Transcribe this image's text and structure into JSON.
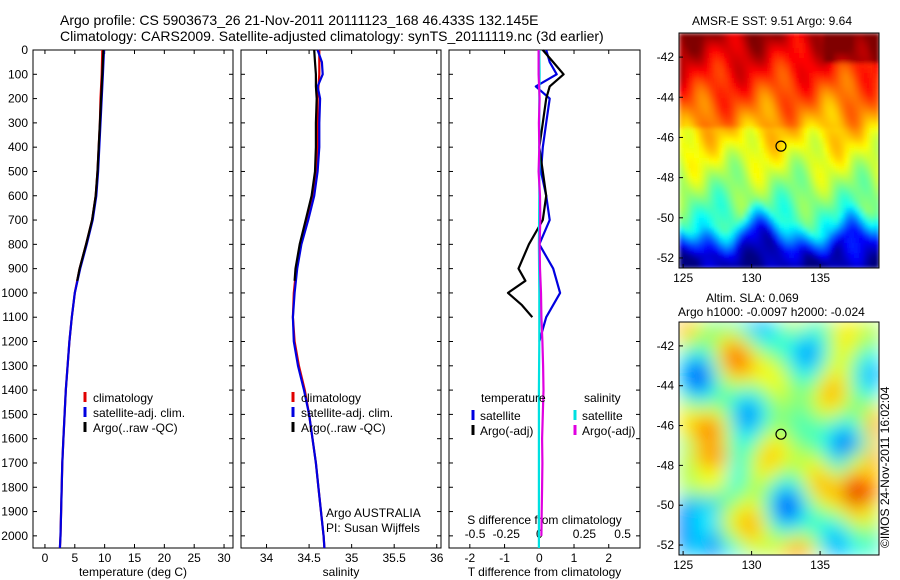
{
  "header": {
    "line1": "Argo profile: CS 5903673_26 21-Nov-2011 20111123_168 46.433S 132.145E",
    "line2": "Climatology: CARS2009. Satellite-adjusted climatology: synTS_20111119.nc (3d earlier)"
  },
  "credits": {
    "line1": "Argo AUSTRALIA",
    "line2": "PI: Susan Wijffels"
  },
  "timestamp": "©IMOS 24-Nov-2011 16:02:04",
  "chart_data": [
    {
      "type": "line",
      "xlabel": "temperature (deg C)",
      "xticks": [
        0,
        5,
        10,
        15,
        20,
        25,
        30
      ],
      "xlim": [
        -2,
        31.5
      ],
      "yticks": [
        0,
        100,
        200,
        300,
        400,
        500,
        600,
        700,
        800,
        900,
        1000,
        1100,
        1200,
        1300,
        1400,
        1500,
        1600,
        1700,
        1800,
        1900,
        2000
      ],
      "ylim": [
        0,
        2050
      ],
      "y_reversed": true,
      "legend": [
        "climatology",
        "satellite-adj. clim.",
        "Argo(..raw -QC)"
      ],
      "series": [
        {
          "name": "climatology",
          "color": "#e00000",
          "depth": [
            0,
            100,
            200,
            300,
            400,
            500,
            600,
            700,
            800,
            900,
            1000,
            1100,
            1200,
            1300,
            1400,
            1500,
            1600,
            1700,
            1800,
            1900,
            2000,
            2050
          ],
          "values": [
            9.6,
            9.5,
            9.3,
            9.2,
            9.0,
            8.8,
            8.5,
            7.9,
            6.9,
            5.8,
            5.0,
            4.5,
            4.1,
            3.8,
            3.5,
            3.3,
            3.1,
            2.9,
            2.8,
            2.7,
            2.6,
            2.5
          ]
        },
        {
          "name": "satellite-adj. clim.",
          "color": "#0000e0",
          "depth": [
            0,
            100,
            200,
            300,
            400,
            500,
            600,
            700,
            800,
            900,
            1000,
            1100,
            1200,
            1300,
            1400,
            1500,
            1600,
            1700,
            1800,
            1900,
            2000,
            2050
          ],
          "values": [
            9.9,
            9.7,
            9.5,
            9.3,
            9.1,
            8.9,
            8.6,
            8.0,
            7.0,
            5.9,
            5.0,
            4.5,
            4.1,
            3.8,
            3.5,
            3.3,
            3.1,
            2.9,
            2.8,
            2.7,
            2.6,
            2.5
          ]
        },
        {
          "name": "Argo(..raw -QC)",
          "color": "#000000",
          "depth": [
            0,
            100,
            200,
            300,
            400,
            500,
            600,
            700,
            800,
            900,
            950
          ],
          "values": [
            9.8,
            9.6,
            9.4,
            9.2,
            9.0,
            8.8,
            8.5,
            7.9,
            6.9,
            5.8,
            5.4
          ]
        }
      ]
    },
    {
      "type": "line",
      "xlabel": "salinity",
      "xticks": [
        34,
        34.5,
        35,
        35.5,
        36
      ],
      "xlim": [
        33.7,
        36.05
      ],
      "yticks": [
        0,
        100,
        200,
        300,
        400,
        500,
        600,
        700,
        800,
        900,
        1000,
        1100,
        1200,
        1300,
        1400,
        1500,
        1600,
        1700,
        1800,
        1900,
        2000
      ],
      "ylim": [
        0,
        2050
      ],
      "y_reversed": true,
      "legend": [
        "climatology",
        "satellite-adj. clim.",
        "Argo(..raw -QC)"
      ],
      "series": [
        {
          "name": "climatology",
          "color": "#e00000",
          "depth": [
            0,
            100,
            200,
            300,
            400,
            500,
            600,
            700,
            800,
            900,
            1000,
            1100,
            1200,
            1300,
            1400,
            1500,
            1600,
            1700,
            1800,
            1900,
            2000,
            2050
          ],
          "values": [
            34.62,
            34.62,
            34.6,
            34.6,
            34.6,
            34.58,
            34.54,
            34.47,
            34.4,
            34.35,
            34.32,
            34.31,
            34.33,
            34.38,
            34.45,
            34.5,
            34.54,
            34.58,
            34.61,
            34.64,
            34.67,
            34.68
          ]
        },
        {
          "name": "satellite-adj. clim.",
          "color": "#0000e0",
          "depth": [
            0,
            50,
            100,
            150,
            200,
            300,
            400,
            500,
            600,
            700,
            800,
            900,
            1000,
            1100,
            1200,
            1300,
            1400,
            1500,
            1600,
            1700,
            1800,
            1900,
            2000,
            2050
          ],
          "values": [
            34.6,
            34.65,
            34.66,
            34.6,
            34.63,
            34.62,
            34.62,
            34.6,
            34.56,
            34.49,
            34.41,
            34.36,
            34.33,
            34.31,
            34.32,
            34.37,
            34.44,
            34.5,
            34.54,
            34.58,
            34.61,
            34.64,
            34.67,
            34.68
          ]
        },
        {
          "name": "Argo(..raw -QC)",
          "color": "#000000",
          "depth": [
            0,
            50,
            100,
            150,
            200,
            300,
            400,
            500,
            600,
            700,
            800,
            900,
            950
          ],
          "values": [
            34.56,
            34.57,
            34.58,
            34.58,
            34.59,
            34.58,
            34.58,
            34.57,
            34.53,
            34.46,
            34.39,
            34.34,
            34.33
          ]
        }
      ]
    },
    {
      "type": "line",
      "xlabel": "T difference from climatology",
      "xticks": [
        -2,
        -1,
        0,
        1,
        2
      ],
      "xlim": [
        -2.6,
        2.9
      ],
      "second_axis_label": "S difference from climatology",
      "second_xticks": [
        "-0.5",
        "-0.25",
        "0",
        "0.25",
        "0.5"
      ],
      "yticks": [
        0,
        100,
        200,
        300,
        400,
        500,
        600,
        700,
        800,
        900,
        1000,
        1100,
        1200,
        1300,
        1400,
        1500,
        1600,
        1700,
        1800,
        1900,
        2000
      ],
      "ylim": [
        0,
        2050
      ],
      "y_reversed": true,
      "legend_temperature_title": "temperature",
      "legend_salinity_title": "salinity",
      "legend_temperature": [
        "satellite",
        "Argo(-adj)"
      ],
      "legend_salinity": [
        "satellite",
        "Argo(-adj)"
      ],
      "series": [
        {
          "name": "T satellite",
          "color": "#0000e0",
          "depth": [
            0,
            50,
            100,
            150,
            200,
            300,
            400,
            500,
            600,
            700,
            800,
            900,
            1000,
            1100,
            1200
          ],
          "values": [
            0.2,
            0.3,
            0.5,
            -0.1,
            0.3,
            0.2,
            0.1,
            0.05,
            0.2,
            0.3,
            0.0,
            0.4,
            0.6,
            0.2,
            0.0
          ]
        },
        {
          "name": "T Argo(-adj)",
          "color": "#000000",
          "depth": [
            0,
            50,
            100,
            150,
            200,
            300,
            400,
            500,
            600,
            700,
            800,
            900,
            950,
            1000,
            1050,
            1100
          ],
          "values": [
            0.1,
            0.4,
            0.7,
            0.3,
            0.2,
            0.1,
            0.0,
            0.1,
            0.2,
            0.1,
            -0.3,
            -0.6,
            -0.4,
            -0.9,
            -0.5,
            -0.2
          ]
        },
        {
          "name": "S satellite",
          "color": "#00e0e0",
          "depth": [
            0,
            100,
            200,
            400,
            600,
            800,
            1000,
            1200,
            1400,
            1600,
            1800,
            2000,
            2050
          ],
          "values": [
            0.0,
            0.01,
            0.0,
            0.0,
            0.0,
            -0.01,
            0.0,
            0.0,
            -0.01,
            -0.01,
            -0.01,
            -0.01,
            -0.01
          ]
        },
        {
          "name": "S Argo(-adj)",
          "color": "#e000e0",
          "depth": [
            0,
            100,
            200,
            300,
            400,
            500,
            600,
            700,
            800,
            900,
            1000,
            1100,
            1200,
            1300,
            1400,
            1500,
            1600,
            1700,
            1800,
            1900,
            2000
          ],
          "values": [
            -0.02,
            -0.02,
            0.01,
            -0.01,
            0.0,
            -0.02,
            0.02,
            0.03,
            0.01,
            0.02,
            0.05,
            0.06,
            0.09,
            0.11,
            0.12,
            0.1,
            0.08,
            0.09,
            0.08,
            0.07,
            0.06
          ]
        }
      ]
    }
  ],
  "maps": [
    {
      "title": "AMSR-E SST: 9.51  Argo: 9.64",
      "title_lines": [],
      "xticks": [
        125,
        130,
        135
      ],
      "yticks": [
        -42,
        -44,
        -46,
        -48,
        -50,
        -52
      ],
      "xlim": [
        124.7,
        139.3
      ],
      "ylim": [
        -52.5,
        -40.8
      ],
      "marker": {
        "lon": 132.145,
        "lat": -46.433
      },
      "kind": "sst"
    },
    {
      "title": "",
      "title_lines": [
        "Altim. SLA: 0.069",
        "Argo h1000: -0.0097 h2000: -0.024"
      ],
      "xticks": [
        125,
        130,
        135
      ],
      "yticks": [
        -42,
        -44,
        -46,
        -48,
        -50,
        -52
      ],
      "xlim": [
        124.7,
        139.3
      ],
      "ylim": [
        -52.5,
        -40.8
      ],
      "marker": {
        "lon": 132.145,
        "lat": -46.433
      },
      "kind": "sla"
    }
  ]
}
